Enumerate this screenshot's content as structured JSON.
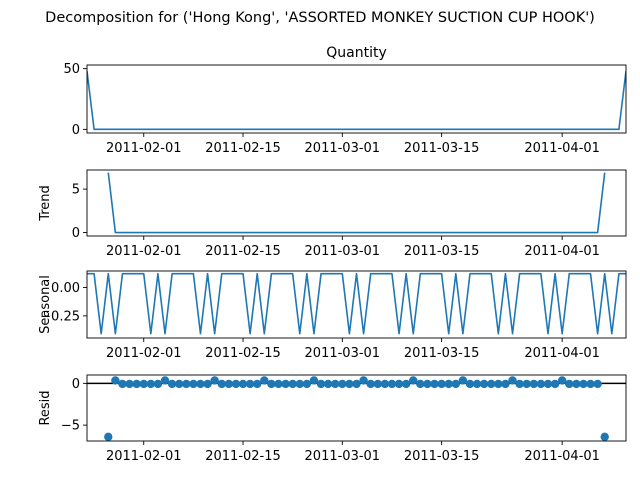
{
  "figure": {
    "suptitle": "Decomposition for ('Hong Kong', 'ASSORTED MONKEY SUCTION CUP HOOK')",
    "line_color": "#1f77b4"
  },
  "chart_data": [
    {
      "type": "line",
      "title": "Quantity",
      "ylabel": "",
      "x_range": [
        "2011-01-24",
        "2011-04-10"
      ],
      "x_ticks": [
        "2011-02-01",
        "2011-02-15",
        "2011-03-01",
        "2011-03-15",
        "2011-04-01"
      ],
      "ylim": [
        -3,
        53
      ],
      "y_ticks": [
        0,
        50
      ],
      "y_tick_labels": [
        "0",
        "50"
      ],
      "series": [
        {
          "points": [
            [
              "2011-01-24",
              48
            ],
            [
              "2011-01-25",
              0
            ],
            [
              "2011-04-09",
              0
            ],
            [
              "2011-04-10",
              48
            ]
          ]
        }
      ]
    },
    {
      "type": "line",
      "title": "",
      "ylabel": "Trend",
      "x_range": [
        "2011-01-24",
        "2011-04-10"
      ],
      "x_ticks": [
        "2011-02-01",
        "2011-02-15",
        "2011-03-01",
        "2011-03-15",
        "2011-04-01"
      ],
      "ylim": [
        -0.4,
        7.2
      ],
      "y_ticks": [
        0,
        5
      ],
      "y_tick_labels": [
        "0",
        "5"
      ],
      "series": [
        {
          "points": [
            [
              "2011-01-27",
              6.9
            ],
            [
              "2011-01-28",
              0
            ],
            [
              "2011-04-06",
              0
            ],
            [
              "2011-04-07",
              6.9
            ]
          ]
        }
      ]
    },
    {
      "type": "line",
      "title": "",
      "ylabel": "Seasonal",
      "x_range": [
        "2011-01-24",
        "2011-04-10"
      ],
      "x_ticks": [
        "2011-02-01",
        "2011-02-15",
        "2011-03-01",
        "2011-03-15",
        "2011-04-01"
      ],
      "ylim": [
        -0.445,
        0.145
      ],
      "y_ticks": [
        0,
        -0.25
      ],
      "y_tick_labels": [
        "0.00",
        "−0.25"
      ],
      "series": [
        {
          "start": "2011-01-24",
          "period_pattern": [
            0.121,
            0.121,
            -0.407,
            0.121,
            -0.407,
            0.121,
            0.121
          ],
          "repeat_days": 77
        }
      ]
    },
    {
      "type": "scatter",
      "title": "",
      "ylabel": "Resid",
      "x_range": [
        "2011-01-24",
        "2011-04-10"
      ],
      "x_ticks": [
        "2011-02-01",
        "2011-02-15",
        "2011-03-01",
        "2011-03-15",
        "2011-04-01"
      ],
      "ylim": [
        -6.9,
        1.0
      ],
      "y_ticks": [
        0,
        -5
      ],
      "y_tick_labels": [
        "0",
        "−5"
      ],
      "zero_line": true,
      "series": [
        {
          "start": "2011-01-27",
          "end": "2011-04-07",
          "base": -0.07,
          "peak": 0.35,
          "peak_every": 7,
          "peak_offset": 1,
          "extra_points": [
            [
              "2011-01-27",
              -6.4
            ],
            [
              "2011-04-07",
              -6.4
            ]
          ]
        }
      ]
    }
  ]
}
